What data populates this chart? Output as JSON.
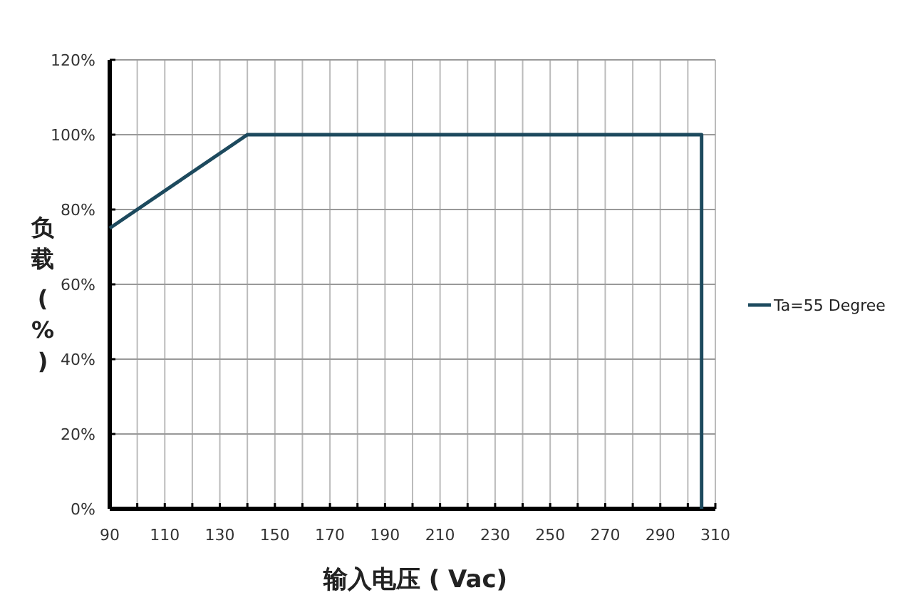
{
  "chart_data": {
    "type": "line",
    "xlabel": "输入电压 ( Vac)",
    "ylabel": "负载 (%)",
    "x": [
      90,
      140,
      305,
      305
    ],
    "series": [
      {
        "name": "Ta=55 Degree",
        "color": "#1d4a5e",
        "values": [
          75,
          100,
          100,
          0
        ]
      }
    ],
    "xlim": [
      90,
      310
    ],
    "xticks": [
      90,
      {
        "value": 100,
        "label": null
      },
      110,
      {
        "value": 120,
        "label": null
      },
      130,
      {
        "value": 140,
        "label": null
      },
      150,
      {
        "value": 160,
        "label": null
      },
      170,
      {
        "value": 180,
        "label": null
      },
      190,
      {
        "value": 200,
        "label": null
      },
      210,
      {
        "value": 220,
        "label": null
      },
      230,
      {
        "value": 240,
        "label": null
      },
      250,
      {
        "value": 260,
        "label": null
      },
      270,
      {
        "value": 280,
        "label": null
      },
      290,
      {
        "value": 300,
        "label": null
      },
      310
    ],
    "ylim": [
      0,
      120
    ],
    "yticks": [
      {
        "value": 0,
        "label": "0%"
      },
      {
        "value": 20,
        "label": "20%"
      },
      {
        "value": 40,
        "label": "40%"
      },
      {
        "value": 60,
        "label": "60%"
      },
      {
        "value": 80,
        "label": "80%"
      },
      {
        "value": 100,
        "label": "100%"
      },
      {
        "value": 120,
        "label": "120%"
      }
    ],
    "grid": true,
    "legend": "right",
    "marker": "none",
    "line_style": "solid"
  }
}
